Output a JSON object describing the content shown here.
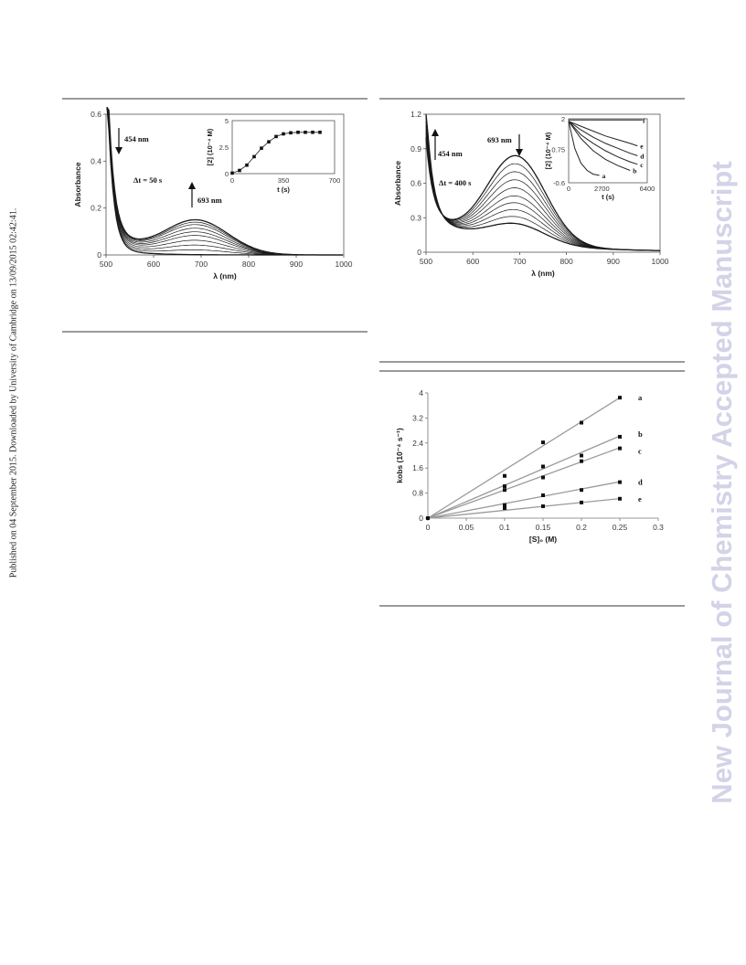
{
  "sidebar": {
    "published_note": "Published on 04 September 2015. Downloaded by University of Cambridge on 13/09/2015 02:42:41.",
    "journal_watermark": "New Journal of Chemistry Accepted Manuscript"
  },
  "colors": {
    "rule": "#9a9a9a",
    "watermark": "#d3d3e8",
    "curve": "#1a1a1a",
    "fit_line": "#9a9a9a"
  },
  "chart_data": [
    {
      "id": "fig-a",
      "type": "line",
      "xlabel": "λ (nm)",
      "ylabel": "Absorbance",
      "xlim": [
        500,
        1000
      ],
      "ylim": [
        0,
        0.6
      ],
      "x_ticks": [
        "500",
        "600",
        "700",
        "800",
        "900",
        "1000"
      ],
      "y_ticks": [
        "0",
        "0.2",
        "0.4",
        "0.6"
      ],
      "annotations": {
        "down_label": "454 nm",
        "up_label": "693 nm",
        "delta_t": "Δt = 50 s"
      },
      "series_shape": {
        "peak_nm": 693,
        "trough_nm": 555,
        "start_high": 0.6
      },
      "series": [
        {
          "values": [
            0.6,
            0.05,
            0.0,
            0.0,
            0.0,
            0.0
          ]
        },
        {
          "values": [
            0.6,
            0.09,
            0.015,
            0.03,
            0.01,
            0.0
          ]
        },
        {
          "values": [
            0.6,
            0.12,
            0.035,
            0.055,
            0.02,
            0.0
          ]
        },
        {
          "values": [
            0.6,
            0.15,
            0.055,
            0.075,
            0.03,
            0.0
          ]
        },
        {
          "values": [
            0.6,
            0.17,
            0.075,
            0.09,
            0.035,
            0.0
          ]
        },
        {
          "values": [
            0.6,
            0.19,
            0.095,
            0.105,
            0.04,
            0.0
          ]
        },
        {
          "values": [
            0.6,
            0.21,
            0.11,
            0.115,
            0.045,
            0.0
          ]
        },
        {
          "values": [
            0.6,
            0.23,
            0.125,
            0.13,
            0.05,
            0.0
          ]
        },
        {
          "values": [
            0.6,
            0.25,
            0.135,
            0.14,
            0.055,
            0.0
          ]
        },
        {
          "values": [
            0.6,
            0.27,
            0.145,
            0.15,
            0.06,
            0.0
          ]
        }
      ],
      "peak_values": [
        0.0,
        0.02,
        0.04,
        0.06,
        0.08,
        0.095,
        0.11,
        0.125,
        0.135,
        0.145
      ],
      "inset": {
        "type": "scatter",
        "xlabel": "t (s)",
        "ylabel": "[2] (10⁻⁴ M)",
        "xlim": [
          0,
          700
        ],
        "ylim": [
          0,
          5
        ],
        "x_ticks": [
          "0",
          "350",
          "700"
        ],
        "y_ticks": [
          "0",
          "2.5",
          "5"
        ],
        "x": [
          0,
          50,
          100,
          150,
          200,
          250,
          300,
          350,
          400,
          450,
          500,
          550,
          600
        ],
        "y": [
          0.05,
          0.3,
          0.8,
          1.6,
          2.4,
          3.0,
          3.5,
          3.75,
          3.85,
          3.9,
          3.9,
          3.9,
          3.9
        ]
      }
    },
    {
      "id": "fig-b",
      "type": "line",
      "xlabel": "λ (nm)",
      "ylabel": "Absorbance",
      "xlim": [
        500,
        1000
      ],
      "ylim": [
        0,
        1.2
      ],
      "x_ticks": [
        "500",
        "600",
        "700",
        "800",
        "900",
        "1000"
      ],
      "y_ticks": [
        "0",
        "0.3",
        "0.6",
        "0.9",
        "1.2"
      ],
      "annotations": {
        "up_label": "454 nm",
        "down_label": "693 nm",
        "delta_t": "Δt = 400 s"
      },
      "peak_values": [
        0.76,
        0.69,
        0.62,
        0.55,
        0.48,
        0.41,
        0.35,
        0.29,
        0.23,
        0.17
      ],
      "inset": {
        "type": "line",
        "xlabel": "t (s)",
        "ylabel": "[2] (10⁻⁴ M)",
        "xlim": [
          0,
          6400
        ],
        "ylim": [
          -0.6,
          2
        ],
        "x_ticks": [
          "0",
          "2700",
          "6400"
        ],
        "y_ticks": [
          "2",
          "0.75",
          "-0.6"
        ],
        "series": [
          {
            "name": "a",
            "x": [
              0,
              500,
              1000,
              1500,
              2000,
              2500
            ],
            "y": [
              1.9,
              0.8,
              0.2,
              -0.1,
              -0.25,
              -0.3
            ]
          },
          {
            "name": "b",
            "x": [
              0,
              1000,
              2000,
              3000,
              4000,
              5000
            ],
            "y": [
              1.9,
              1.2,
              0.7,
              0.35,
              0.1,
              -0.1
            ]
          },
          {
            "name": "c",
            "x": [
              0,
              1000,
              2000,
              3000,
              4000,
              5000,
              5600
            ],
            "y": [
              1.9,
              1.35,
              1.0,
              0.7,
              0.45,
              0.25,
              0.15
            ]
          },
          {
            "name": "d",
            "x": [
              0,
              1000,
              2000,
              3000,
              4000,
              5000,
              5600
            ],
            "y": [
              1.9,
              1.55,
              1.25,
              1.0,
              0.8,
              0.6,
              0.5
            ]
          },
          {
            "name": "e",
            "x": [
              0,
              1000,
              2000,
              3000,
              4000,
              5000,
              5600
            ],
            "y": [
              1.9,
              1.7,
              1.5,
              1.3,
              1.15,
              1.0,
              0.9
            ]
          },
          {
            "name": "f",
            "x": [
              0,
              6000
            ],
            "y": [
              1.95,
              1.95
            ]
          }
        ]
      }
    },
    {
      "id": "fig-c",
      "type": "scatter",
      "xlabel": "[S]₀ (M)",
      "ylabel": "kobs (10⁻⁴ s⁻¹)",
      "xlim": [
        0,
        0.3
      ],
      "ylim": [
        0,
        4
      ],
      "x_ticks": [
        "0",
        "0.05",
        "0.1",
        "0.15",
        "0.2",
        "0.25",
        "0.3"
      ],
      "y_ticks": [
        "0",
        "0.8",
        "1.6",
        "2.4",
        "3.2",
        "4"
      ],
      "series": [
        {
          "name": "a",
          "x": [
            0,
            0.1,
            0.15,
            0.2,
            0.25
          ],
          "y": [
            0,
            1.35,
            2.42,
            3.05,
            3.85
          ],
          "slope": 15.4
        },
        {
          "name": "b",
          "x": [
            0,
            0.1,
            0.15,
            0.2,
            0.25
          ],
          "y": [
            0,
            1.02,
            1.65,
            2.0,
            2.6
          ],
          "slope": 10.5
        },
        {
          "name": "c",
          "x": [
            0,
            0.1,
            0.15,
            0.2,
            0.25
          ],
          "y": [
            0,
            0.9,
            1.3,
            1.82,
            2.23
          ],
          "slope": 9.0
        },
        {
          "name": "d",
          "x": [
            0,
            0.1,
            0.15,
            0.2,
            0.25
          ],
          "y": [
            0,
            0.42,
            0.73,
            0.9,
            1.15
          ],
          "slope": 4.65
        },
        {
          "name": "e",
          "x": [
            0,
            0.1,
            0.15,
            0.2,
            0.25
          ],
          "y": [
            0,
            0.32,
            0.38,
            0.5,
            0.62
          ],
          "slope": 2.5
        }
      ]
    }
  ]
}
